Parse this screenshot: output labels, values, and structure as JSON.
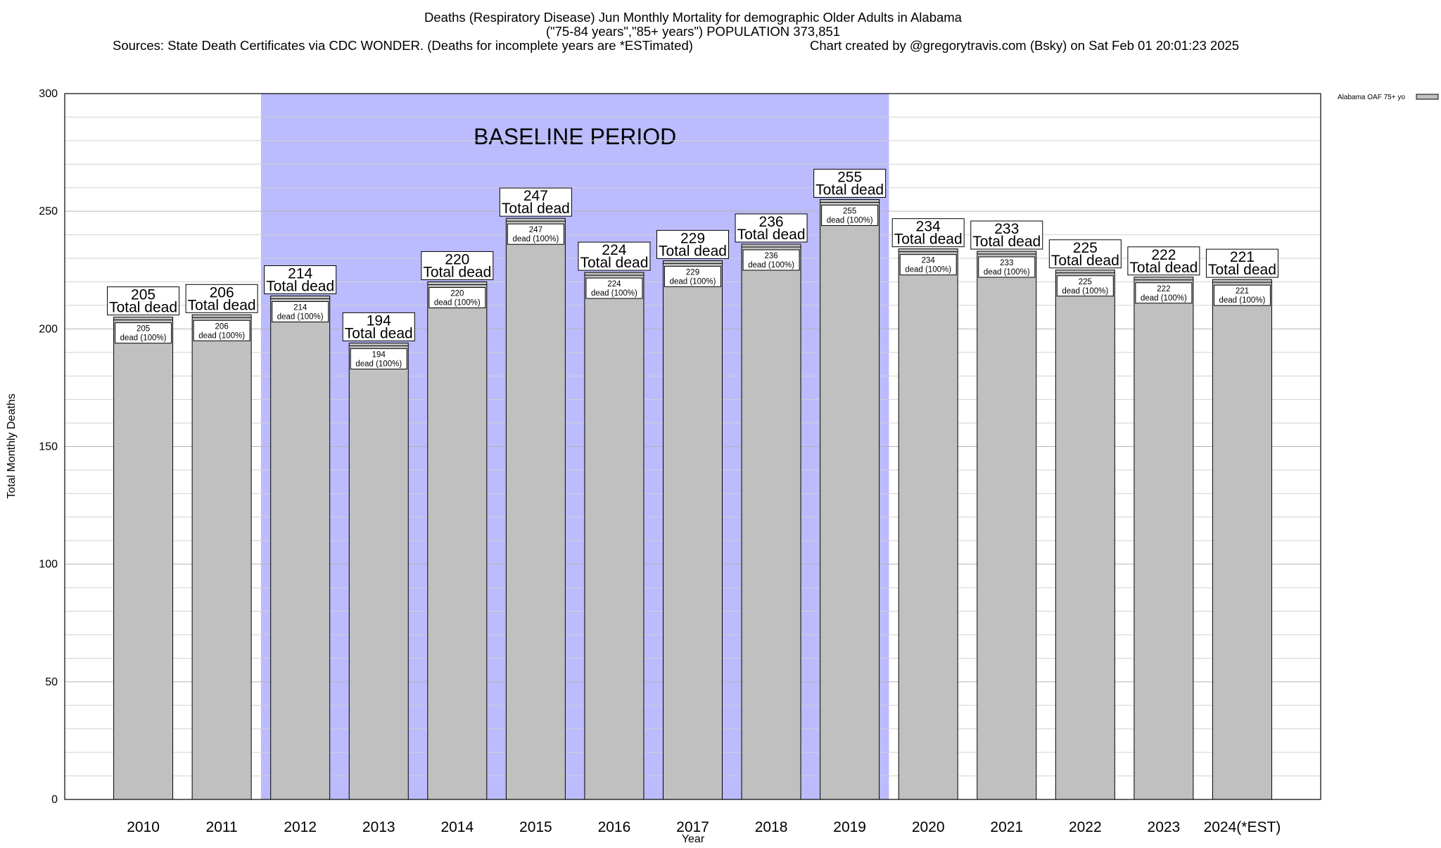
{
  "header": {
    "line1": "Deaths (Respiratory Disease) Jun Monthly Mortality for demographic Older Adults in Alabama",
    "line2": "(\"75-84 years\",\"85+ years\") POPULATION 373,851",
    "sources": "Sources: State Death Certificates via CDC WONDER. (Deaths for incomplete years are *ESTimated)",
    "credit": "Chart created by @gregorytravis.com (Bsky) on Sat Feb 01 20:01:23 2025"
  },
  "chart_data": {
    "type": "bar",
    "categories": [
      "2010",
      "2011",
      "2012",
      "2013",
      "2014",
      "2015",
      "2016",
      "2017",
      "2018",
      "2019",
      "2020",
      "2021",
      "2022",
      "2023",
      "2024(*EST)"
    ],
    "series": [
      {
        "name": "Alabama OAF 75+ yo",
        "values": [
          205,
          206,
          214,
          194,
          220,
          247,
          224,
          229,
          236,
          255,
          234,
          233,
          225,
          222,
          221
        ],
        "color": "#c0c0c0"
      }
    ],
    "bar_label_primary": "Total dead",
    "bar_label_secondary": "dead (100%)",
    "xlabel": "Year",
    "ylabel": "Total Monthly Deaths",
    "ylim": [
      0,
      300
    ],
    "yticks": [
      0,
      50,
      100,
      150,
      200,
      250,
      300
    ],
    "minor_grid_step": 10,
    "grid": true,
    "legend_position": "top-right",
    "baseline": {
      "label": "BASELINE PERIOD",
      "start": "2012",
      "end": "2019",
      "color": "#bbbbfd"
    }
  }
}
